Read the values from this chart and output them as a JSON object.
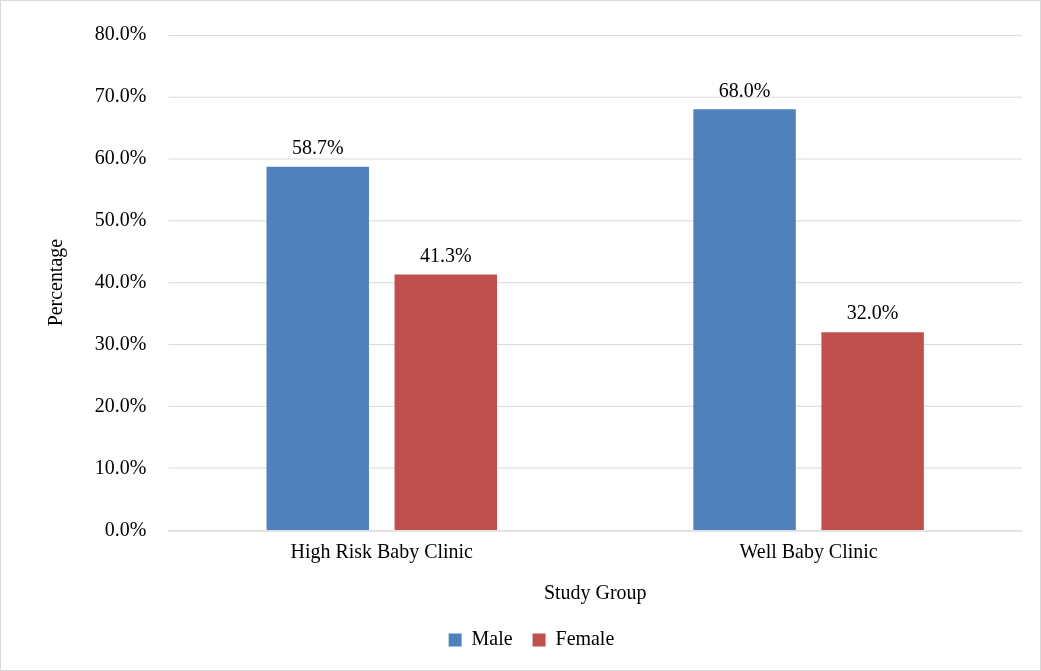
{
  "chart_data": {
    "type": "bar",
    "xlabel": "Study Group",
    "ylabel": "Percentage",
    "categories": [
      "High Risk Baby Clinic",
      "Well Baby Clinic"
    ],
    "series": [
      {
        "name": "Male",
        "color": "#4f81bd",
        "values": [
          58.7,
          68.0
        ],
        "value_labels": [
          "58.7%",
          "68.0%"
        ]
      },
      {
        "name": "Female",
        "color": "#c0504d",
        "values": [
          41.3,
          32.0
        ],
        "value_labels": [
          "41.3%",
          "32.0%"
        ]
      }
    ],
    "ylim": [
      0,
      80
    ],
    "yticks": [
      {
        "value": 0,
        "label": "0.0%"
      },
      {
        "value": 10,
        "label": "10.0%"
      },
      {
        "value": 20,
        "label": "20.0%"
      },
      {
        "value": 30,
        "label": "30.0%"
      },
      {
        "value": 40,
        "label": "40.0%"
      },
      {
        "value": 50,
        "label": "50.0%"
      },
      {
        "value": 60,
        "label": "60.0%"
      },
      {
        "value": 70,
        "label": "70.0%"
      },
      {
        "value": 80,
        "label": "80.0%"
      }
    ],
    "grid": "y",
    "legend": "bottom"
  }
}
